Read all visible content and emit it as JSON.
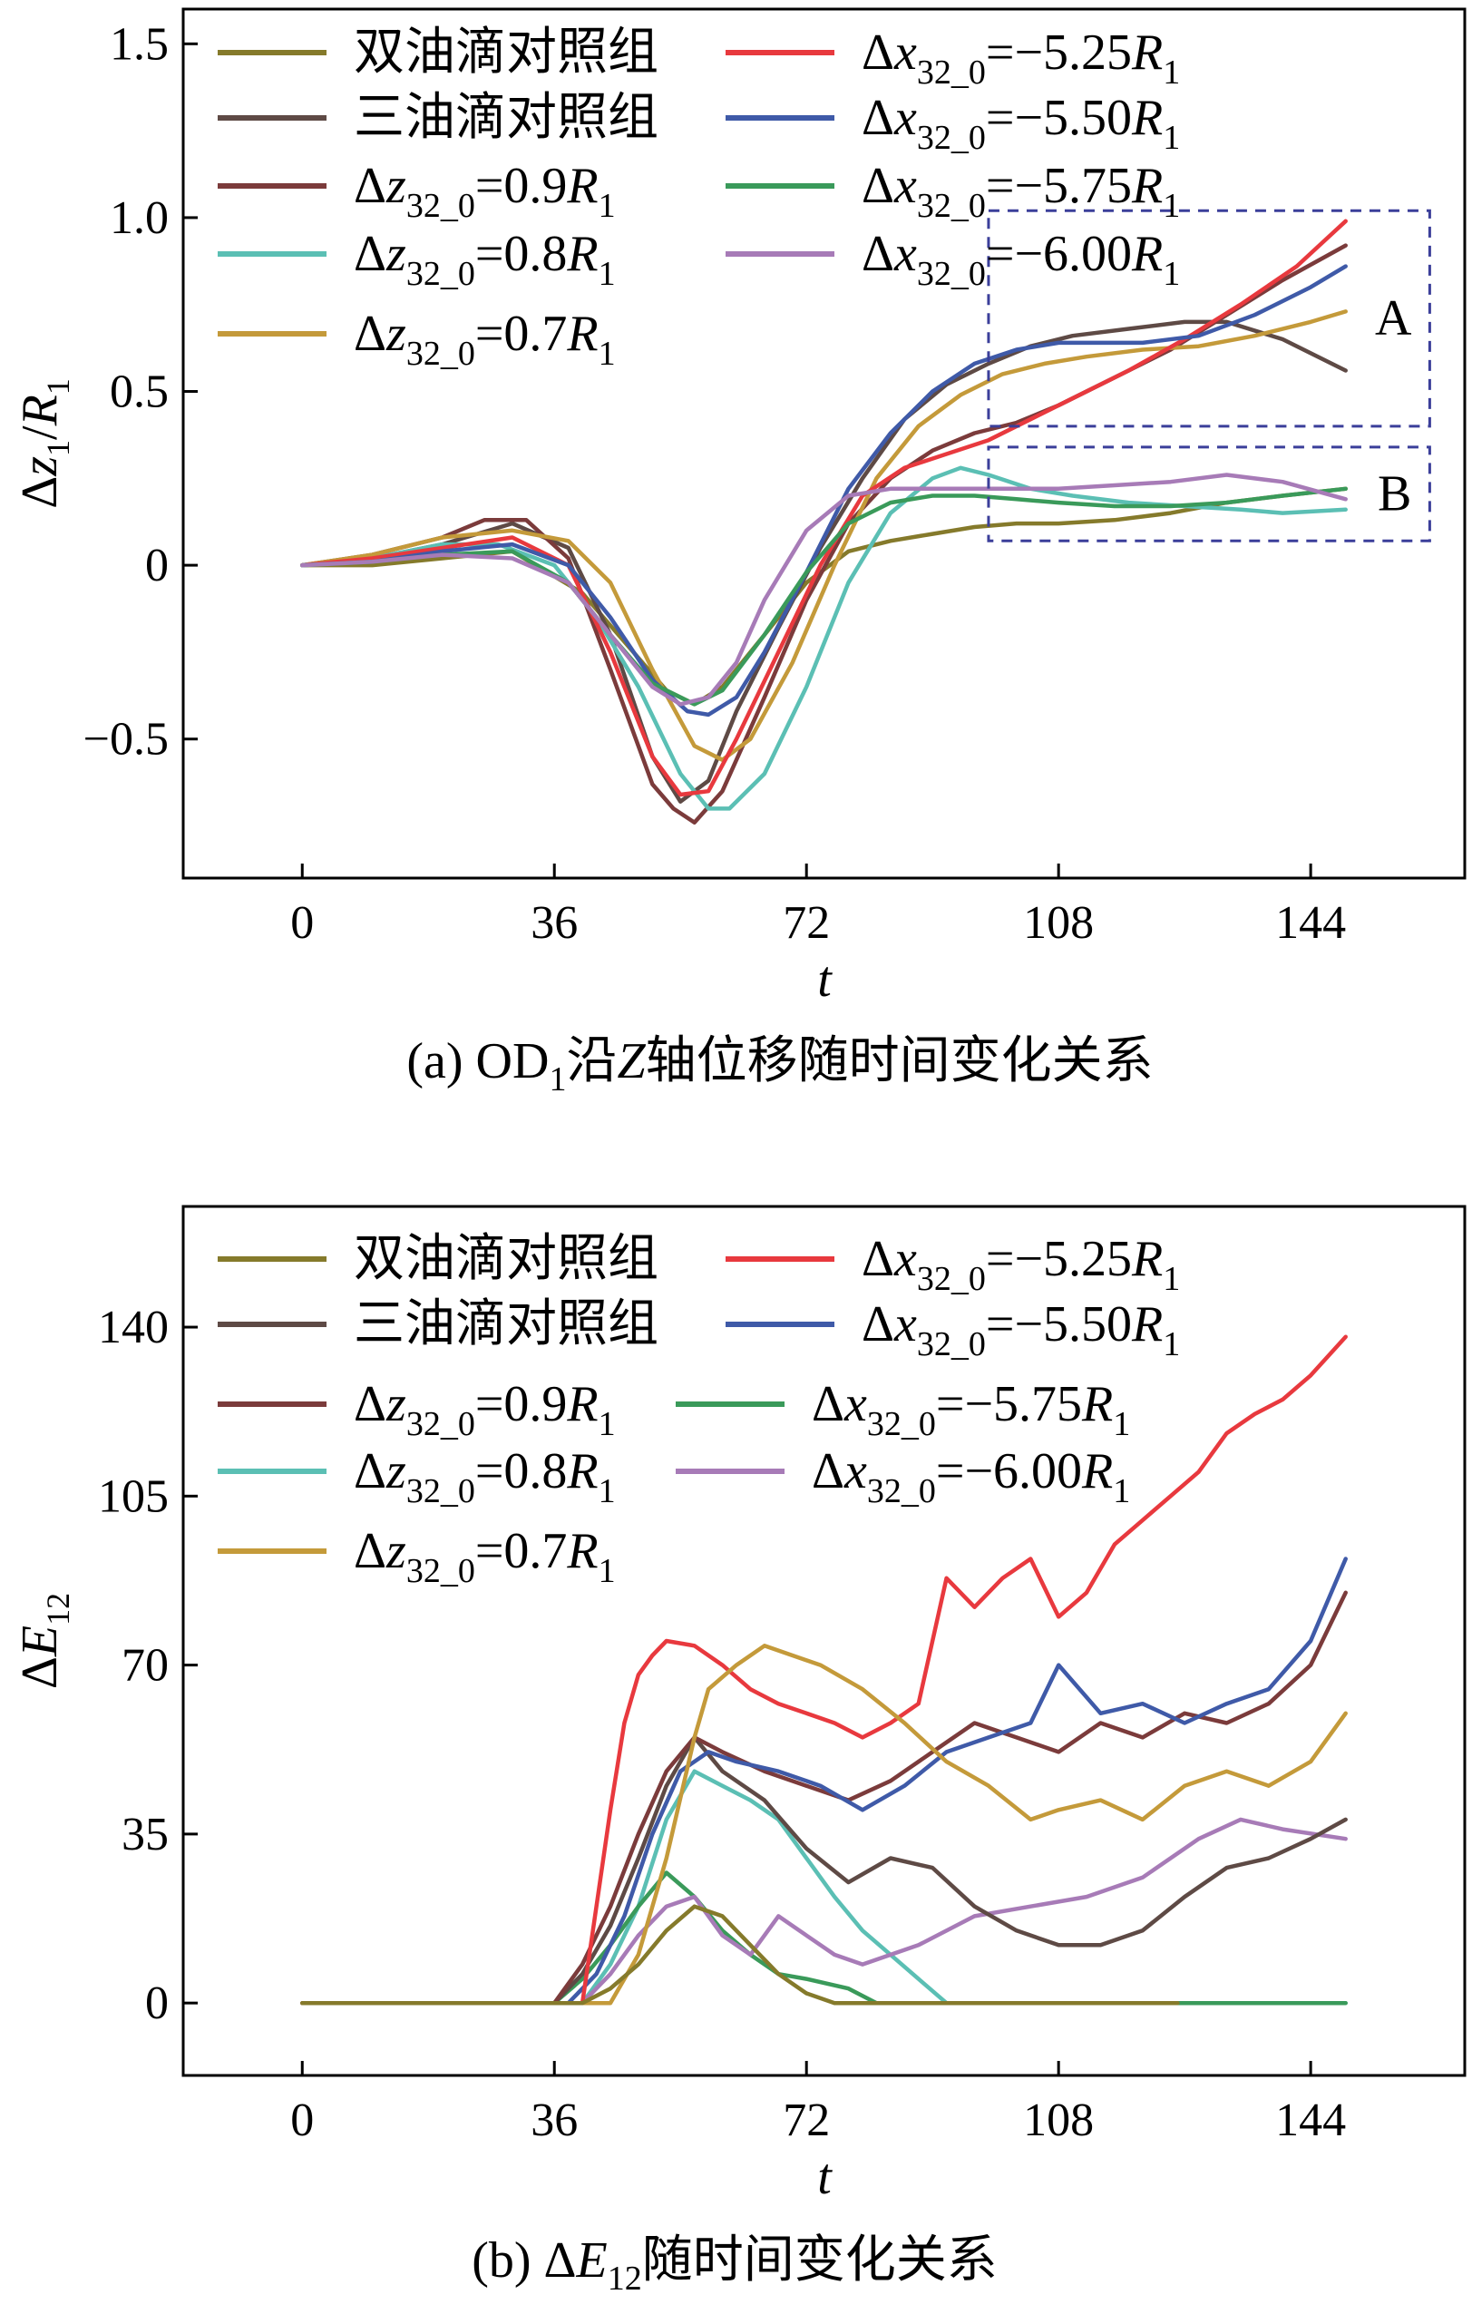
{
  "colors": {
    "double_control": "#857a2b",
    "triple_control": "#5e4a45",
    "dz_09": "#7b3b3b",
    "dz_08": "#5bbfb4",
    "dz_07": "#c49a3a",
    "dx_525": "#e8393e",
    "dx_550": "#3f5aa8",
    "dx_575": "#3a9a5a",
    "dx_600": "#a77bb7",
    "region_box": "#3b3f9a"
  },
  "legend": [
    {
      "key": "double_control",
      "text": "双油滴对照组"
    },
    {
      "key": "triple_control",
      "text": "三油滴对照组"
    },
    {
      "key": "dz_09",
      "text": "Δz32_0=0.9R1"
    },
    {
      "key": "dz_08",
      "text": "Δz32_0=0.8R1"
    },
    {
      "key": "dz_07",
      "text": "Δz32_0=0.7R1"
    },
    {
      "key": "dx_525",
      "text": "Δx32_0=−5.25R1"
    },
    {
      "key": "dx_550",
      "text": "Δx32_0=−5.50R1"
    },
    {
      "key": "dx_575",
      "text": "Δx32_0=−5.75R1"
    },
    {
      "key": "dx_600",
      "text": "Δx32_0=−6.00R1"
    }
  ],
  "chart_data": [
    {
      "type": "line",
      "title": "(a) OD1沿Z轴位移随时间变化关系",
      "xlabel": "t",
      "ylabel": "Δz1/R1",
      "xlim": [
        -17,
        166
      ],
      "ylim": [
        -0.9,
        1.6
      ],
      "xticks": [
        0,
        36,
        72,
        108,
        144
      ],
      "yticks": [
        -0.5,
        0,
        0.5,
        1.0,
        1.5
      ],
      "ytick_labels": [
        "−0.5",
        "0",
        "0.5",
        "1.0",
        "1.5"
      ],
      "legend": [
        {
          "label": "双油滴对照组"
        },
        {
          "label": "三油滴对照组"
        },
        {
          "label": "Δz32_0=0.9R1"
        },
        {
          "label": "Δz32_0=0.8R1"
        },
        {
          "label": "Δz32_0=0.7R1"
        },
        {
          "label": "Δx32_0=−5.25R1"
        },
        {
          "label": "Δx32_0=−5.50R1"
        },
        {
          "label": "Δx32_0=−5.75R1"
        },
        {
          "label": "Δx32_0=−6.00R1"
        }
      ],
      "annotations": [
        {
          "label": "A",
          "x_range": [
            98,
            161
          ],
          "y_range": [
            0.4,
            1.02
          ]
        },
        {
          "label": "B",
          "x_range": [
            98,
            161
          ],
          "y_range": [
            0.07,
            0.34
          ]
        }
      ],
      "series": [
        {
          "key": "double_control",
          "name": "双油滴对照组",
          "x": [
            0,
            10,
            20,
            30,
            40,
            46,
            52,
            56,
            60,
            66,
            72,
            78,
            84,
            90,
            96,
            102,
            108,
            116,
            124,
            132,
            140,
            149
          ],
          "y": [
            0,
            0.0,
            0.02,
            0.04,
            -0.08,
            -0.22,
            -0.36,
            -0.4,
            -0.35,
            -0.2,
            -0.05,
            0.04,
            0.07,
            0.09,
            0.11,
            0.12,
            0.12,
            0.13,
            0.15,
            0.18,
            0.2,
            0.22
          ]
        },
        {
          "key": "triple_control",
          "name": "三油滴对照组",
          "x": [
            0,
            10,
            20,
            30,
            38,
            44,
            50,
            54,
            58,
            62,
            68,
            74,
            80,
            86,
            92,
            98,
            104,
            110,
            118,
            126,
            132,
            140,
            149
          ],
          "y": [
            0,
            0.02,
            0.06,
            0.12,
            0.05,
            -0.2,
            -0.55,
            -0.68,
            -0.62,
            -0.42,
            -0.18,
            0.05,
            0.25,
            0.42,
            0.52,
            0.58,
            0.63,
            0.66,
            0.68,
            0.7,
            0.7,
            0.65,
            0.56
          ]
        },
        {
          "key": "dz_09",
          "name": "Δz32_0=0.9R1",
          "x": [
            0,
            10,
            20,
            26,
            32,
            38,
            44,
            50,
            53,
            56,
            60,
            66,
            72,
            78,
            84,
            90,
            96,
            102,
            108,
            116,
            124,
            132,
            140,
            149
          ],
          "y": [
            0,
            0.03,
            0.08,
            0.13,
            0.13,
            0.02,
            -0.3,
            -0.63,
            -0.7,
            -0.74,
            -0.65,
            -0.38,
            -0.1,
            0.12,
            0.25,
            0.33,
            0.38,
            0.41,
            0.46,
            0.54,
            0.62,
            0.72,
            0.82,
            0.92
          ]
        },
        {
          "key": "dz_08",
          "name": "Δz32_0=0.8R1",
          "x": [
            0,
            10,
            20,
            28,
            36,
            42,
            48,
            54,
            58,
            61,
            66,
            72,
            78,
            84,
            90,
            94,
            98,
            104,
            110,
            118,
            126,
            134,
            140,
            149
          ],
          "y": [
            0,
            0.02,
            0.06,
            0.06,
            0.0,
            -0.15,
            -0.35,
            -0.6,
            -0.7,
            -0.7,
            -0.6,
            -0.35,
            -0.05,
            0.15,
            0.25,
            0.28,
            0.26,
            0.22,
            0.2,
            0.18,
            0.17,
            0.16,
            0.15,
            0.16
          ]
        },
        {
          "key": "dz_07",
          "name": "Δz32_0=0.7R1",
          "x": [
            0,
            10,
            20,
            30,
            38,
            44,
            50,
            56,
            60,
            64,
            70,
            76,
            82,
            88,
            94,
            100,
            106,
            112,
            120,
            128,
            136,
            144,
            149
          ],
          "y": [
            0,
            0.03,
            0.08,
            0.1,
            0.07,
            -0.05,
            -0.3,
            -0.52,
            -0.56,
            -0.5,
            -0.28,
            0.0,
            0.25,
            0.4,
            0.49,
            0.55,
            0.58,
            0.6,
            0.62,
            0.63,
            0.66,
            0.7,
            0.73
          ]
        },
        {
          "key": "dx_525",
          "name": "Δx32_0=−5.25R1",
          "x": [
            0,
            10,
            20,
            30,
            38,
            44,
            50,
            54,
            58,
            62,
            68,
            74,
            80,
            86,
            92,
            98,
            104,
            110,
            118,
            126,
            134,
            142,
            149
          ],
          "y": [
            0,
            0.02,
            0.05,
            0.08,
            0.0,
            -0.25,
            -0.55,
            -0.66,
            -0.65,
            -0.5,
            -0.25,
            0.0,
            0.2,
            0.28,
            0.32,
            0.36,
            0.42,
            0.48,
            0.56,
            0.65,
            0.75,
            0.86,
            0.99
          ]
        },
        {
          "key": "dx_550",
          "name": "Δx32_0=−5.50R1",
          "x": [
            0,
            10,
            20,
            30,
            38,
            44,
            50,
            55,
            58,
            62,
            66,
            72,
            78,
            84,
            90,
            96,
            102,
            108,
            114,
            120,
            128,
            136,
            144,
            149
          ],
          "y": [
            0,
            0.01,
            0.04,
            0.06,
            0.0,
            -0.15,
            -0.33,
            -0.42,
            -0.43,
            -0.38,
            -0.25,
            -0.02,
            0.22,
            0.38,
            0.5,
            0.58,
            0.62,
            0.64,
            0.64,
            0.64,
            0.66,
            0.72,
            0.8,
            0.86
          ]
        },
        {
          "key": "dx_575",
          "name": "Δx32_0=−5.75R1",
          "x": [
            0,
            10,
            20,
            30,
            38,
            44,
            50,
            56,
            60,
            66,
            72,
            78,
            84,
            90,
            96,
            102,
            108,
            116,
            124,
            132,
            140,
            149
          ],
          "y": [
            0,
            0.01,
            0.03,
            0.04,
            -0.05,
            -0.2,
            -0.34,
            -0.4,
            -0.36,
            -0.2,
            -0.02,
            0.12,
            0.18,
            0.2,
            0.2,
            0.19,
            0.18,
            0.17,
            0.17,
            0.18,
            0.2,
            0.22
          ]
        },
        {
          "key": "dx_600",
          "name": "Δx32_0=−6.00R1",
          "x": [
            0,
            10,
            20,
            30,
            38,
            44,
            50,
            54,
            58,
            62,
            66,
            72,
            78,
            84,
            90,
            96,
            102,
            108,
            116,
            124,
            132,
            140,
            149
          ],
          "y": [
            0,
            0.01,
            0.03,
            0.02,
            -0.05,
            -0.2,
            -0.35,
            -0.4,
            -0.38,
            -0.28,
            -0.1,
            0.1,
            0.2,
            0.22,
            0.22,
            0.22,
            0.22,
            0.22,
            0.23,
            0.24,
            0.26,
            0.24,
            0.19
          ]
        }
      ]
    },
    {
      "type": "line",
      "title": "(b) ΔE12随时间变化关系",
      "xlabel": "t",
      "ylabel": "ΔE12",
      "xlim": [
        -17,
        166
      ],
      "ylim": [
        -15,
        165
      ],
      "xticks": [
        0,
        36,
        72,
        108,
        144
      ],
      "yticks": [
        0,
        35,
        70,
        105,
        140
      ],
      "ytick_labels": [
        "0",
        "35",
        "70",
        "105",
        "140"
      ],
      "legend": [
        {
          "label": "双油滴对照组"
        },
        {
          "label": "三油滴对照组"
        },
        {
          "label": "Δz32_0=0.9R1"
        },
        {
          "label": "Δz32_0=0.8R1"
        },
        {
          "label": "Δz32_0=0.7R1"
        },
        {
          "label": "Δx32_0=−5.25R1"
        },
        {
          "label": "Δx32_0=−5.50R1"
        },
        {
          "label": "Δx32_0=−5.75R1"
        },
        {
          "label": "Δx32_0=−6.00R1"
        }
      ],
      "series": [
        {
          "key": "dz_08",
          "name": "Δz32_0=0.8R1",
          "x": [
            0,
            40,
            44,
            48,
            52,
            56,
            60,
            64,
            68,
            72,
            76,
            80,
            84,
            88,
            92,
            96,
            149
          ],
          "y": [
            0,
            0,
            8,
            20,
            38,
            48,
            45,
            42,
            38,
            30,
            22,
            15,
            10,
            5,
            0,
            0,
            0
          ]
        },
        {
          "key": "dx_575",
          "name": "Δx32_0=−5.75R1",
          "x": [
            0,
            36,
            40,
            44,
            48,
            52,
            56,
            60,
            64,
            68,
            72,
            78,
            82,
            149
          ],
          "y": [
            0,
            0,
            5,
            12,
            20,
            27,
            22,
            15,
            10,
            6,
            5,
            3,
            0,
            0
          ]
        },
        {
          "key": "dx_600",
          "name": "Δx32_0=−6.00R1",
          "x": [
            0,
            40,
            44,
            48,
            52,
            56,
            60,
            64,
            68,
            72,
            76,
            80,
            88,
            96,
            104,
            112,
            120,
            128,
            134,
            140,
            149
          ],
          "y": [
            0,
            0,
            6,
            14,
            20,
            22,
            14,
            10,
            18,
            14,
            10,
            8,
            12,
            18,
            20,
            22,
            26,
            34,
            38,
            36,
            34
          ]
        },
        {
          "key": "triple_control",
          "name": "三油滴对照组",
          "x": [
            0,
            36,
            40,
            44,
            48,
            52,
            56,
            60,
            66,
            72,
            78,
            84,
            90,
            96,
            102,
            108,
            114,
            120,
            126,
            132,
            138,
            144,
            149
          ],
          "y": [
            0,
            0,
            6,
            16,
            30,
            45,
            55,
            48,
            42,
            32,
            25,
            30,
            28,
            20,
            15,
            12,
            12,
            15,
            22,
            28,
            30,
            34,
            38
          ]
        },
        {
          "key": "dz_09",
          "name": "Δz32_0=0.9R1",
          "x": [
            0,
            36,
            40,
            44,
            48,
            52,
            56,
            60,
            66,
            72,
            78,
            84,
            90,
            96,
            102,
            108,
            114,
            120,
            126,
            132,
            138,
            144,
            149
          ],
          "y": [
            0,
            0,
            8,
            20,
            35,
            48,
            55,
            52,
            48,
            45,
            42,
            46,
            52,
            58,
            55,
            52,
            58,
            55,
            60,
            58,
            62,
            70,
            85
          ]
        },
        {
          "key": "dx_550",
          "name": "Δx32_0=−5.50R1",
          "x": [
            0,
            38,
            42,
            46,
            50,
            54,
            58,
            62,
            68,
            74,
            80,
            86,
            92,
            98,
            104,
            108,
            114,
            120,
            126,
            132,
            138,
            144,
            149
          ],
          "y": [
            0,
            0,
            6,
            18,
            35,
            48,
            52,
            50,
            48,
            45,
            40,
            45,
            52,
            55,
            58,
            70,
            60,
            62,
            58,
            62,
            65,
            75,
            92
          ]
        },
        {
          "key": "dx_525",
          "name": "Δx32_0=−5.25R1",
          "x": [
            0,
            40,
            42,
            44,
            46,
            48,
            50,
            52,
            56,
            60,
            64,
            68,
            72,
            76,
            80,
            84,
            88,
            92,
            96,
            100,
            104,
            108,
            112,
            116,
            120,
            124,
            128,
            132,
            136,
            140,
            144,
            149
          ],
          "y": [
            0,
            0,
            20,
            40,
            58,
            68,
            72,
            75,
            74,
            70,
            65,
            62,
            60,
            58,
            55,
            58,
            62,
            88,
            82,
            88,
            92,
            80,
            85,
            95,
            100,
            105,
            110,
            118,
            122,
            125,
            130,
            138
          ]
        },
        {
          "key": "dz_07",
          "name": "Δz32_0=0.7R1",
          "x": [
            0,
            44,
            48,
            52,
            56,
            58,
            62,
            66,
            70,
            74,
            80,
            86,
            92,
            98,
            104,
            108,
            114,
            120,
            126,
            132,
            138,
            144,
            149
          ],
          "y": [
            0,
            0,
            10,
            30,
            55,
            65,
            70,
            74,
            72,
            70,
            65,
            58,
            50,
            45,
            38,
            40,
            42,
            38,
            45,
            48,
            45,
            50,
            60
          ]
        },
        {
          "key": "double_control",
          "name": "双油滴对照组",
          "x": [
            0,
            40,
            44,
            48,
            52,
            56,
            60,
            64,
            68,
            72,
            76,
            80,
            125
          ],
          "y": [
            0,
            0,
            3,
            8,
            15,
            20,
            18,
            12,
            6,
            2,
            0,
            0,
            0
          ]
        }
      ]
    }
  ]
}
